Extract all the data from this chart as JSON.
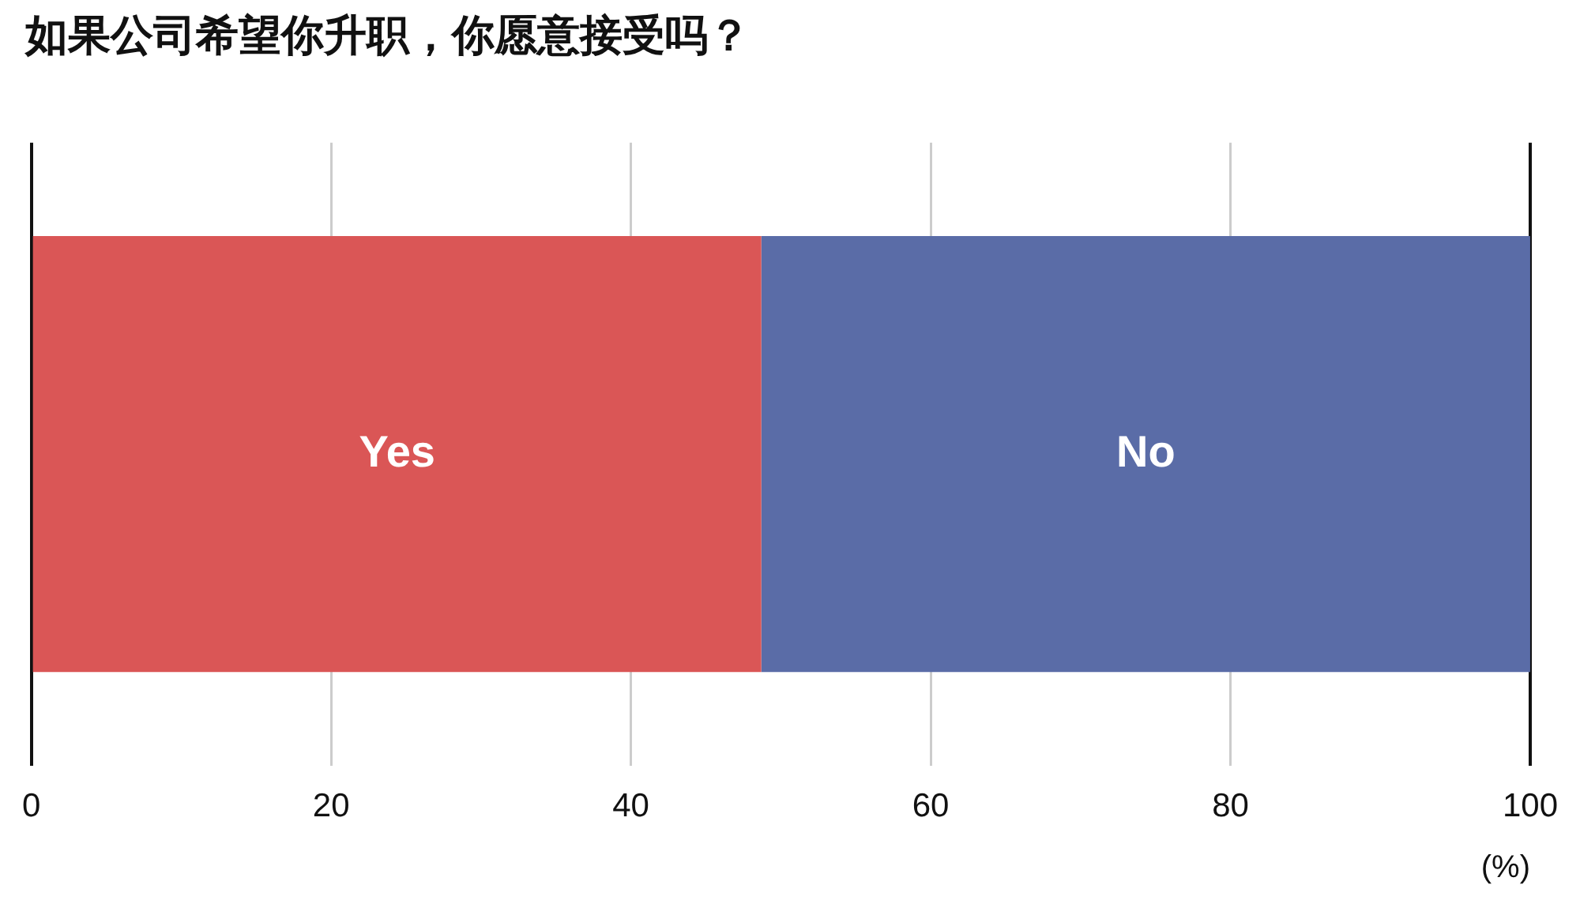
{
  "chart_data": {
    "type": "bar",
    "orientation": "horizontal",
    "stacked": true,
    "title": "如果公司希望你升职，你愿意接受吗？",
    "categories": [
      null
    ],
    "series": [
      {
        "name": "Yes",
        "color": "#da5656",
        "values": [
          48.7
        ]
      },
      {
        "name": "No",
        "color": "#5a6ca7",
        "values": [
          51.3
        ]
      }
    ],
    "xlabel": "(%)",
    "xlim": [
      0,
      100
    ],
    "xticks": [
      0,
      20,
      40,
      60,
      80,
      100
    ],
    "grid": "x",
    "legend": false
  }
}
